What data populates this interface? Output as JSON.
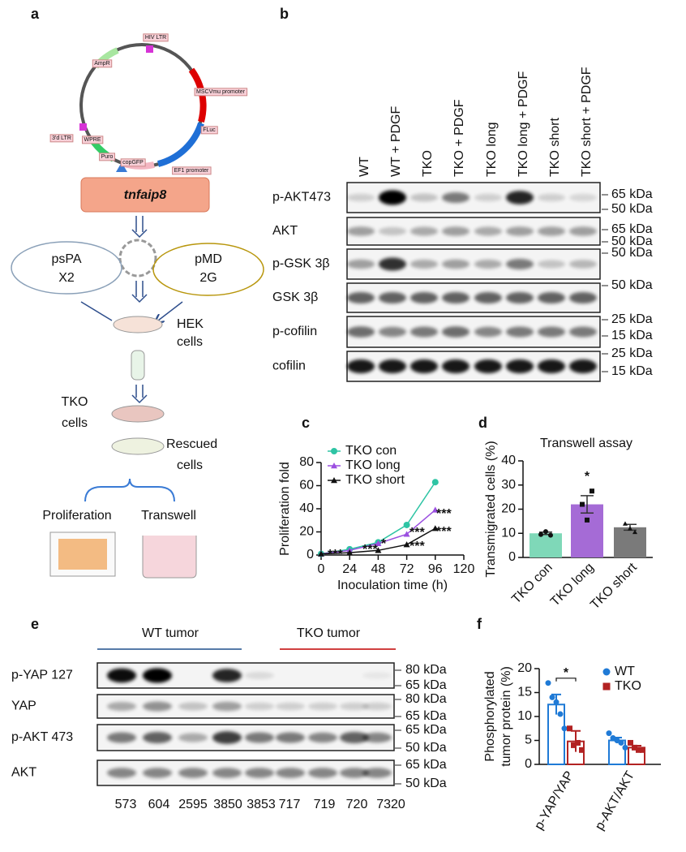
{
  "panel_labels": [
    "a",
    "b",
    "c",
    "d",
    "e",
    "f"
  ],
  "panel_a": {
    "plasmid_features": [
      "HIV LTR",
      "MSCVmu promoter",
      "FLuc",
      "EF1 promoter",
      "copGFP",
      "Puro",
      "WPRE",
      "3'd LTR",
      "AmpR"
    ],
    "insert": "tnfaip8",
    "packaging": [
      [
        "psPA",
        "X2"
      ],
      [
        "pMD",
        "2G"
      ]
    ],
    "producer": [
      "HEK",
      "cells"
    ],
    "target": [
      "TKO",
      "cells"
    ],
    "rescued": [
      "Rescued",
      "cells"
    ],
    "assays": [
      "Proliferation",
      "Transwell"
    ]
  },
  "panel_b": {
    "lanes": [
      "WT",
      "WT + PDGF",
      "TKO",
      "TKO + PDGF",
      "TKO long",
      "TKO long + PDGF",
      "TKO short",
      "TKO short + PDGF"
    ],
    "rows": [
      {
        "name": "p-AKT473",
        "markers": [
          "65 kDa",
          "50 kDa"
        ]
      },
      {
        "name": "AKT",
        "markers": [
          "65 kDa",
          "50 kDa"
        ]
      },
      {
        "name": "p-GSK 3β",
        "markers": [
          "50 kDa"
        ]
      },
      {
        "name": "GSK 3β",
        "markers": [
          "50 kDa"
        ]
      },
      {
        "name": "p-cofilin",
        "markers": [
          "25 kDa",
          "15 kDa"
        ]
      },
      {
        "name": "cofilin",
        "markers": [
          "25 kDa",
          "15 kDa"
        ]
      }
    ]
  },
  "chart_data": [
    {
      "type": "line",
      "xlabel": "Inoculation time (h)",
      "ylabel": "Proliferation fold",
      "x": [
        0,
        24,
        48,
        72,
        96
      ],
      "series": [
        {
          "name": "TKO con",
          "color": "#2ec4a4",
          "values": [
            1,
            5,
            11,
            26,
            63
          ]
        },
        {
          "name": "TKO long",
          "color": "#9b4fe0",
          "values": [
            1,
            4,
            10,
            18,
            39
          ]
        },
        {
          "name": "TKO short",
          "color": "#111111",
          "values": [
            1,
            2,
            4,
            9,
            23
          ]
        }
      ],
      "xlim": [
        0,
        120
      ],
      "xticks": [
        0,
        24,
        48,
        72,
        96,
        120
      ],
      "ylim": [
        0,
        80
      ],
      "yticks": [
        0,
        20,
        40,
        60,
        80
      ],
      "legend": "upper left",
      "annotations": [
        "***",
        "***",
        "***",
        "***",
        "*",
        "***",
        "***"
      ]
    },
    {
      "type": "bar",
      "title": "Transwell assay",
      "ylabel": "Transmigrated cells (%)",
      "categories": [
        "TKO con",
        "TKO long",
        "TKO short"
      ],
      "values": [
        10,
        22,
        12.5
      ],
      "errors": [
        0.5,
        3.6,
        1.2
      ],
      "colors": [
        "#7fd8b8",
        "#a56bd6",
        "#7a7a7a"
      ],
      "points": [
        [
          9.5,
          10.7,
          9.2
        ],
        [
          22,
          15.5,
          27.5
        ],
        [
          14,
          12,
          10.5
        ]
      ],
      "ylim": [
        0,
        40
      ],
      "yticks": [
        0,
        10,
        20,
        30,
        40
      ],
      "annotations": [
        "*"
      ]
    },
    {
      "type": "grouped_bar",
      "ylabel": [
        "Phosphorylated",
        "tumor protein (%)"
      ],
      "categories": [
        "p-YAP/YAP",
        "p-AKT/AKT"
      ],
      "series": [
        {
          "name": "WT",
          "color": "#1f7ad6",
          "values": [
            12.5,
            5
          ],
          "errors": [
            2.1,
            0.6
          ],
          "points": [
            [
              17,
              14,
              13,
              10.5,
              7.5
            ],
            [
              6.5,
              5.5,
              5,
              4.5,
              3.5
            ]
          ]
        },
        {
          "name": "TKO",
          "color": "#b22222",
          "values": [
            4.8,
            3.5
          ],
          "errors": [
            2.2,
            0.4
          ],
          "points": [
            [
              7.5,
              4,
              4.5,
              3
            ],
            [
              4.5,
              3.5,
              3,
              3
            ]
          ]
        }
      ],
      "ylim": [
        0,
        20
      ],
      "yticks": [
        0,
        5,
        10,
        15,
        20
      ],
      "legend": "upper right",
      "annotations": [
        "*"
      ]
    }
  ],
  "panel_e": {
    "groups": [
      {
        "name": "WT tumor",
        "color": "#1f4e8c",
        "samples": [
          573,
          604,
          2595,
          3850,
          3853
        ]
      },
      {
        "name": "TKO tumor",
        "color": "#c00000",
        "samples": [
          717,
          719,
          720,
          7320
        ]
      }
    ],
    "rows": [
      {
        "name": "p-YAP 127",
        "markers": [
          "80 kDa",
          "65 kDa"
        ]
      },
      {
        "name": "YAP",
        "markers": [
          "80 kDa",
          "65 kDa"
        ]
      },
      {
        "name": "p-AKT 473",
        "markers": [
          "65 kDa",
          "50 kDa"
        ]
      },
      {
        "name": "AKT",
        "markers": [
          "65 kDa",
          "50 kDa"
        ]
      }
    ]
  }
}
